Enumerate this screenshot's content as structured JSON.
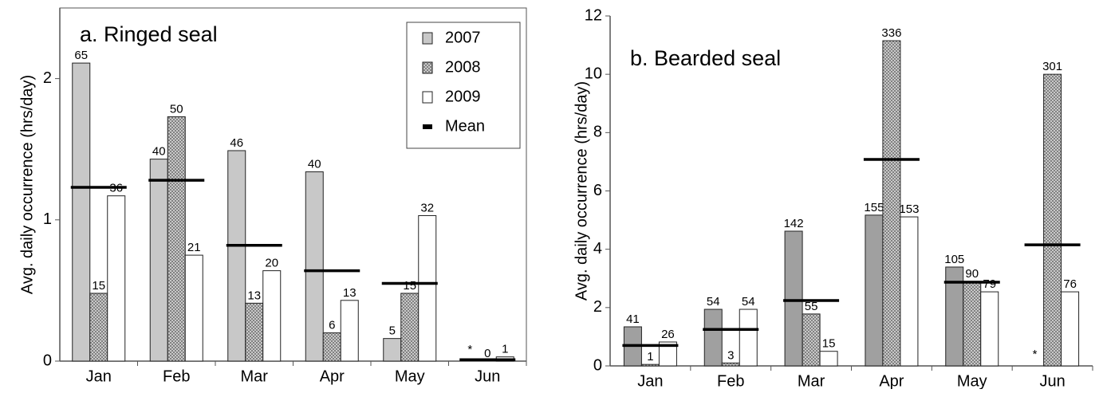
{
  "chart_data": [
    {
      "type": "bar",
      "title": "a. Ringed seal",
      "ylabel": "Avg. daily occurrence (hrs/day)",
      "categories": [
        "Jan",
        "Feb",
        "Mar",
        "Apr",
        "May",
        "Jun"
      ],
      "ylim": [
        0,
        2.5
      ],
      "yticks": [
        0,
        1,
        2
      ],
      "frame": true,
      "legend": "upper right",
      "series": [
        {
          "name": "2007",
          "color": "#c8c8c8",
          "fill": "solid",
          "values": [
            2.11,
            1.43,
            1.49,
            1.34,
            0.16,
            null
          ],
          "bar_labels": [
            "65",
            "40",
            "46",
            "40",
            "5",
            "*"
          ]
        },
        {
          "name": "2008",
          "color": "#7a7a7a",
          "fill": "crosshatch",
          "values": [
            0.48,
            1.73,
            0.41,
            0.2,
            0.48,
            0
          ],
          "bar_labels": [
            "15",
            "50",
            "13",
            "6",
            "15",
            "0"
          ]
        },
        {
          "name": "2009",
          "color": "#ffffff",
          "fill": "solid",
          "values": [
            1.17,
            0.75,
            0.64,
            0.43,
            1.03,
            0.03
          ],
          "bar_labels": [
            "36",
            "21",
            "20",
            "13",
            "32",
            "1"
          ]
        },
        {
          "name": "Mean",
          "color": "#000000",
          "fill": "mean-line",
          "values": [
            1.23,
            1.28,
            0.82,
            0.64,
            0.55,
            0.01
          ]
        }
      ]
    },
    {
      "type": "bar",
      "title": "b. Bearded seal",
      "ylabel": "Avg. daily occurrence (hrs/day)",
      "categories": [
        "Jan",
        "Feb",
        "Mar",
        "Apr",
        "May",
        "Jun"
      ],
      "ylim": [
        0,
        12
      ],
      "yticks": [
        0,
        2,
        4,
        6,
        8,
        10,
        12
      ],
      "frame": false,
      "legend": "none",
      "series": [
        {
          "name": "2007",
          "color": "#a0a0a0",
          "fill": "solid",
          "values": [
            1.34,
            1.94,
            4.62,
            5.17,
            3.39,
            null
          ],
          "bar_labels": [
            "41",
            "54",
            "142",
            "155",
            "105",
            "*"
          ]
        },
        {
          "name": "2008",
          "color": "#7a7a7a",
          "fill": "crosshatch",
          "values": [
            0.05,
            0.1,
            1.78,
            11.15,
            2.9,
            10.0
          ],
          "bar_labels": [
            "1",
            "3",
            "55",
            "336",
            "90",
            "301"
          ]
        },
        {
          "name": "2009",
          "color": "#ffffff",
          "fill": "solid",
          "values": [
            0.82,
            1.94,
            0.5,
            5.11,
            2.54,
            2.54
          ],
          "bar_labels": [
            "26",
            "54",
            "15",
            "153",
            "79",
            "76"
          ]
        },
        {
          "name": "Mean",
          "color": "#000000",
          "fill": "mean-line",
          "values": [
            0.7,
            1.25,
            2.24,
            7.08,
            2.87,
            4.15
          ]
        }
      ]
    }
  ]
}
